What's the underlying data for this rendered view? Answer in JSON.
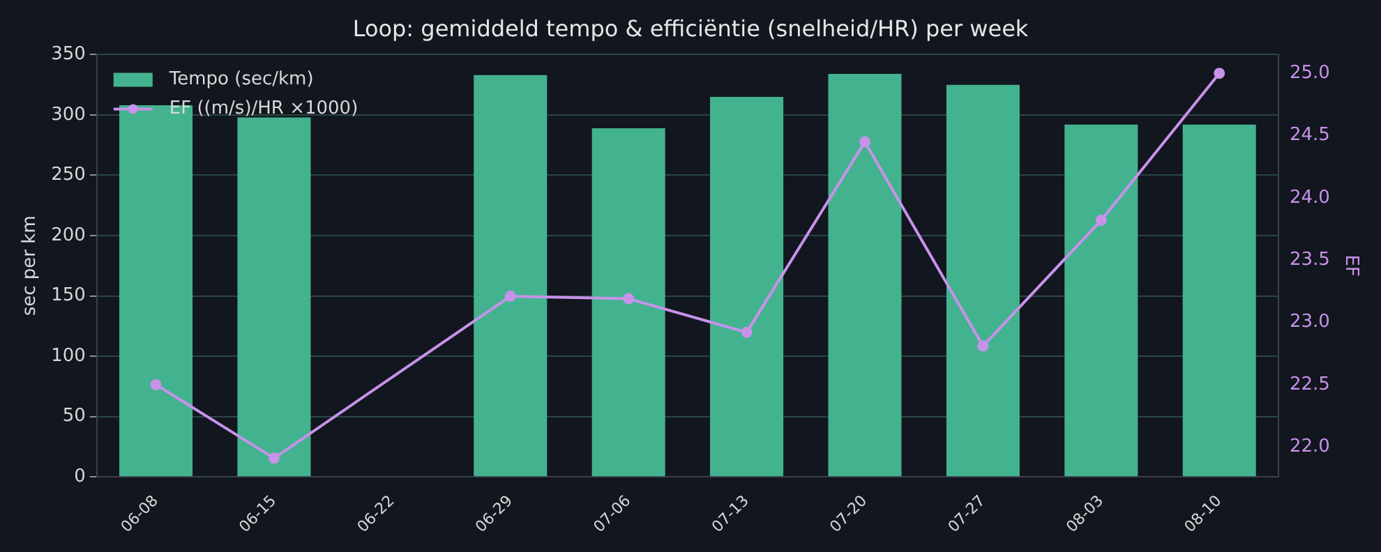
{
  "chart_data": {
    "type": "bar",
    "title": "Loop: gemiddeld tempo & efficiëntie (snelheid/HR) per week",
    "categories": [
      "06-08",
      "06-15",
      "06-22",
      "06-29",
      "07-06",
      "07-13",
      "07-20",
      "07-27",
      "08-03",
      "08-10"
    ],
    "series": [
      {
        "name": "Tempo (sec/km)",
        "color": "#43b38f",
        "values": [
          308,
          298,
          null,
          333,
          289,
          315,
          334,
          325,
          292,
          292
        ]
      },
      {
        "name": "EF ((m/s)/HR ×1000)",
        "type": "line",
        "axis": "y2",
        "color": "#c792ea",
        "values": [
          22.5,
          21.91,
          null,
          23.21,
          23.19,
          22.92,
          24.45,
          22.81,
          23.82,
          25.0
        ]
      }
    ],
    "ylabel": "sec per km",
    "y2label": "EF",
    "ylim": [
      0,
      350
    ],
    "yticks": [
      0,
      50,
      100,
      150,
      200,
      250,
      300,
      350
    ],
    "y2lim": [
      21.76,
      25.15
    ],
    "y2ticks": [
      {
        "value": 22,
        "label": "22.0"
      },
      22.5,
      {
        "value": 23,
        "label": "23.0"
      },
      23.5,
      {
        "value": 24,
        "label": "24.0"
      },
      24.5,
      {
        "value": 25,
        "label": "25.0"
      }
    ],
    "grid": "y",
    "legend": "top left",
    "marker": "circle"
  }
}
